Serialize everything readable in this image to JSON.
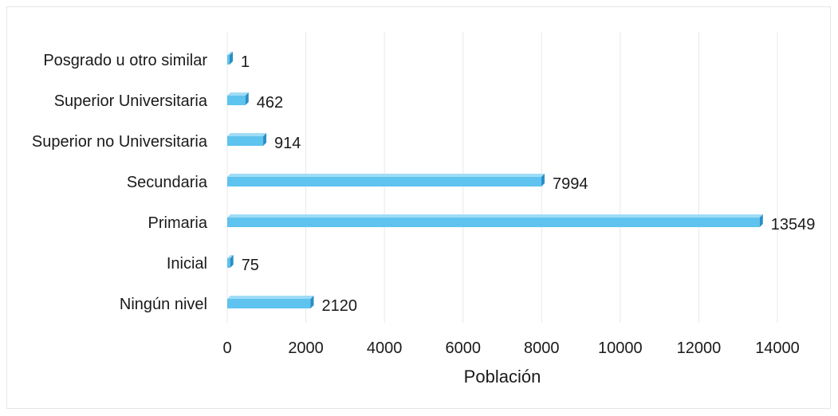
{
  "chart_data": {
    "type": "bar",
    "orientation": "horizontal",
    "categories": [
      "Posgrado u otro similar",
      "Superior Universitaria",
      "Superior no Universitaria",
      "Secundaria",
      "Primaria",
      "Inicial",
      "Ningún nivel"
    ],
    "values": [
      1,
      462,
      914,
      7994,
      13549,
      75,
      2120
    ],
    "data_labels": [
      "1",
      "462",
      "914",
      "7994",
      "13549",
      "75",
      "2120"
    ],
    "xlabel": "Población",
    "ylabel": "",
    "xlim": [
      0,
      14000
    ],
    "xticks": [
      0,
      2000,
      4000,
      6000,
      8000,
      10000,
      12000,
      14000
    ],
    "xtick_labels": [
      "0",
      "2000",
      "4000",
      "6000",
      "8000",
      "10000",
      "12000",
      "14000"
    ],
    "grid": true,
    "legend": "none",
    "colors": {
      "bar_top": "#9fdcf6",
      "bar_face": "#5ec3ee",
      "bar_end": "#2a8fc4"
    }
  }
}
